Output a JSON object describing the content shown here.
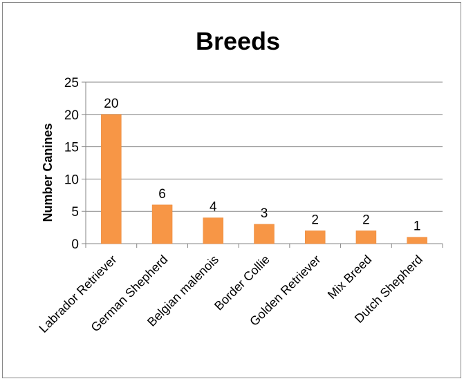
{
  "chart_data": {
    "type": "bar",
    "title": "Breeds",
    "xlabel": "",
    "ylabel": "Number Canines",
    "categories": [
      "Labrador Retriever",
      "German Shepherd",
      "Belgian malenois",
      "Border Collie",
      "Golden Retriever",
      "Mix Breed",
      "Dutch Shepherd"
    ],
    "values": [
      20,
      6,
      4,
      3,
      2,
      2,
      1
    ],
    "ylim": [
      0,
      25
    ],
    "yticks": [
      0,
      5,
      10,
      15,
      20,
      25
    ],
    "grid": true,
    "legend": "none",
    "data_labels": true,
    "colors": {
      "bar": "#F79646",
      "bar_stroke": "#E8883A",
      "grid": "#868686",
      "frame": "#868686"
    }
  }
}
